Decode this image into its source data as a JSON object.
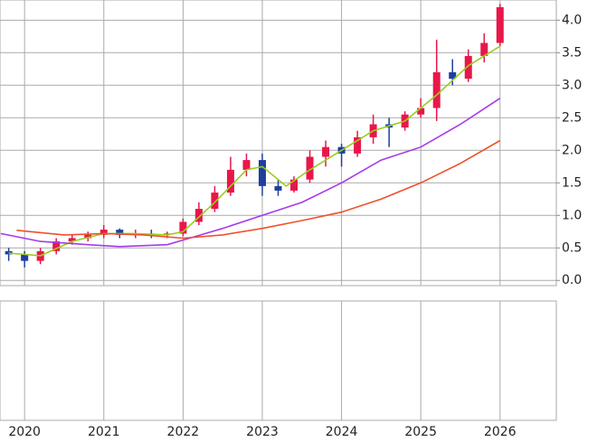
{
  "chart_data": {
    "type": "candlestick",
    "x": [
      2019.8,
      2020.0,
      2020.2,
      2020.4,
      2020.6,
      2020.8,
      2021.0,
      2021.2,
      2021.4,
      2021.6,
      2021.8,
      2022.0,
      2022.2,
      2022.4,
      2022.6,
      2022.8,
      2023.0,
      2023.2,
      2023.4,
      2023.6,
      2023.8,
      2024.0,
      2024.2,
      2024.4,
      2024.6,
      2024.8,
      2025.0,
      2025.2,
      2025.4,
      2025.6,
      2025.8,
      2026.0
    ],
    "open": [
      0.45,
      0.4,
      0.3,
      0.45,
      0.6,
      0.65,
      0.7,
      0.78,
      0.7,
      0.72,
      0.7,
      0.72,
      0.9,
      1.1,
      1.35,
      1.7,
      1.85,
      1.45,
      1.38,
      1.55,
      1.9,
      2.05,
      1.95,
      2.2,
      2.4,
      2.35,
      2.55,
      2.65,
      3.2,
      3.1,
      3.45,
      3.65
    ],
    "high": [
      0.5,
      0.45,
      0.5,
      0.65,
      0.7,
      0.75,
      0.85,
      0.8,
      0.78,
      0.78,
      0.75,
      0.95,
      1.2,
      1.45,
      1.9,
      1.95,
      1.95,
      1.55,
      1.6,
      2.0,
      2.15,
      2.1,
      2.3,
      2.55,
      2.5,
      2.6,
      2.8,
      3.7,
      3.4,
      3.55,
      3.8,
      4.25
    ],
    "low": [
      0.3,
      0.2,
      0.25,
      0.4,
      0.55,
      0.6,
      0.65,
      0.65,
      0.65,
      0.65,
      0.65,
      0.68,
      0.85,
      1.05,
      1.3,
      1.6,
      1.3,
      1.3,
      1.35,
      1.5,
      1.75,
      1.75,
      1.9,
      2.1,
      2.05,
      2.3,
      2.5,
      2.45,
      3.0,
      3.05,
      3.35,
      3.6
    ],
    "close": [
      0.4,
      0.3,
      0.45,
      0.6,
      0.65,
      0.7,
      0.78,
      0.7,
      0.72,
      0.7,
      0.72,
      0.9,
      1.1,
      1.35,
      1.7,
      1.85,
      1.45,
      1.38,
      1.55,
      1.9,
      2.05,
      1.95,
      2.2,
      2.4,
      2.35,
      2.55,
      2.65,
      3.2,
      3.1,
      3.45,
      3.65,
      4.2
    ],
    "up_color": "#e8174a",
    "down_color": "#1f3f9f",
    "series": [
      {
        "color": "#9acd1e",
        "x": [
          2019.8,
          2020.2,
          2020.6,
          2021.0,
          2021.4,
          2021.8,
          2022.0,
          2022.4,
          2022.8,
          2023.0,
          2023.3,
          2023.6,
          2024.0,
          2024.4,
          2024.8,
          2025.2,
          2025.6,
          2026.0
        ],
        "values": [
          0.42,
          0.38,
          0.6,
          0.72,
          0.72,
          0.7,
          0.75,
          1.2,
          1.7,
          1.75,
          1.45,
          1.7,
          2.0,
          2.3,
          2.45,
          2.85,
          3.3,
          3.6
        ]
      },
      {
        "color": "#a53be8",
        "x": [
          2019.7,
          2020.2,
          2020.8,
          2021.2,
          2021.8,
          2022.0,
          2022.5,
          2023.0,
          2023.5,
          2024.0,
          2024.5,
          2025.0,
          2025.5,
          2026.0
        ],
        "values": [
          0.72,
          0.6,
          0.55,
          0.52,
          0.55,
          0.62,
          0.8,
          1.0,
          1.2,
          1.5,
          1.85,
          2.05,
          2.4,
          2.8
        ]
      },
      {
        "color": "#f0502a",
        "x": [
          2019.9,
          2020.5,
          2021.0,
          2021.5,
          2022.0,
          2022.5,
          2023.0,
          2023.5,
          2024.0,
          2024.5,
          2025.0,
          2025.5,
          2026.0
        ],
        "values": [
          0.77,
          0.7,
          0.72,
          0.7,
          0.65,
          0.7,
          0.8,
          0.92,
          1.05,
          1.25,
          1.5,
          1.8,
          2.15
        ]
      }
    ],
    "xlim": [
      2019.69,
      2026.71
    ],
    "xticks": [
      2020,
      2021,
      2022,
      2023,
      2024,
      2025,
      2026
    ],
    "ylim": [
      -0.08,
      4.31
    ],
    "yticks": [
      {
        "value": 0,
        "label": "0.0"
      },
      {
        "value": 0.5,
        "label": "0.5"
      },
      {
        "value": 1,
        "label": "1.0"
      },
      {
        "value": 1.5,
        "label": "1.5"
      },
      {
        "value": 2,
        "label": "2.0"
      },
      {
        "value": 2.5,
        "label": "2.5"
      },
      {
        "value": 3,
        "label": "3.0"
      },
      {
        "value": 3.5,
        "label": "3.5"
      },
      {
        "value": 4,
        "label": "4.0"
      }
    ],
    "grid": true
  }
}
